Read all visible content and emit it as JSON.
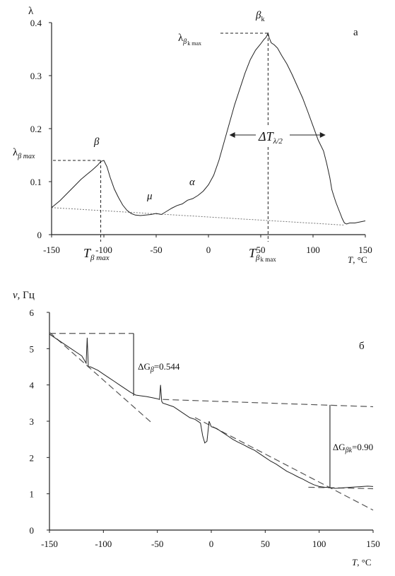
{
  "chart_data": [
    {
      "type": "line",
      "panel_label": "а",
      "ylabel": "λ",
      "xlabel_var": "T",
      "xlabel_unit": ", °C",
      "xlim": [
        -150,
        150
      ],
      "ylim": [
        0,
        0.4
      ],
      "x_ticks": [
        -150,
        -100,
        -50,
        0,
        50,
        100,
        150
      ],
      "y_ticks": [
        0,
        0.1,
        0.2,
        0.3,
        0.4
      ],
      "y_tick_labels": [
        "0",
        "0.1",
        "0.2",
        "0.3",
        "0.4"
      ],
      "series": [
        {
          "x": [
            -150,
            -142,
            -135,
            -128,
            -122,
            -116,
            -111,
            -106,
            -103,
            -100,
            -97,
            -94,
            -90,
            -86,
            -82,
            -78,
            -74,
            -70,
            -65,
            -60,
            -55,
            -50,
            -45,
            -40,
            -35,
            -30,
            -25,
            -20,
            -15,
            -10,
            -5,
            0,
            5,
            10,
            15,
            20,
            25,
            30,
            35,
            40,
            45,
            50,
            53,
            55,
            57,
            58,
            60,
            63,
            66,
            70,
            75,
            80,
            85,
            90,
            95,
            100,
            105,
            110,
            113,
            116,
            118,
            120,
            122,
            124,
            126,
            128,
            130,
            132,
            135,
            140,
            145,
            150
          ],
          "y": [
            0.051,
            0.064,
            0.078,
            0.092,
            0.104,
            0.114,
            0.122,
            0.131,
            0.138,
            0.14,
            0.128,
            0.108,
            0.086,
            0.07,
            0.056,
            0.046,
            0.04,
            0.037,
            0.036,
            0.037,
            0.038,
            0.04,
            0.038,
            0.044,
            0.05,
            0.055,
            0.058,
            0.065,
            0.068,
            0.074,
            0.082,
            0.094,
            0.112,
            0.14,
            0.175,
            0.21,
            0.245,
            0.275,
            0.305,
            0.33,
            0.348,
            0.36,
            0.368,
            0.372,
            0.38,
            0.372,
            0.362,
            0.358,
            0.352,
            0.338,
            0.322,
            0.302,
            0.28,
            0.258,
            0.232,
            0.205,
            0.178,
            0.158,
            0.135,
            0.108,
            0.085,
            0.072,
            0.06,
            0.05,
            0.04,
            0.03,
            0.022,
            0.02,
            0.022,
            0.022,
            0.024,
            0.026
          ]
        }
      ],
      "baseline": {
        "x": [
          -150,
          130
        ],
        "y": [
          0.051,
          0.018
        ]
      },
      "annotations": {
        "beta_peak": "β",
        "beta_k_peak": "β",
        "beta_k_sub": "k",
        "mu": "μ",
        "alpha": "α",
        "lambda_beta_max_main": "λ",
        "lambda_beta_max_sub": "β max",
        "lambda_beta_k_max_main": "λ",
        "lambda_beta_k_max_sub": "β",
        "lambda_beta_k_max_subsub": "k max",
        "T_beta_max_main": "T",
        "T_beta_max_sub": "β max",
        "T_beta_k_max_main": "T",
        "T_beta_k_max_sub": "β",
        "T_beta_k_max_subsub": "k max",
        "delta_T_main": "ΔT",
        "delta_T_sub": "λ/2",
        "beta_max_point": {
          "x": -103,
          "y": 0.14
        },
        "beta_k_max_point": {
          "x": 57,
          "y": 0.38
        },
        "half_width_range": {
          "x": [
            20,
            112
          ],
          "y": 0.188
        }
      }
    },
    {
      "type": "line",
      "panel_label": "б",
      "ylabel_var": "ν",
      "ylabel_unit": ", Гц",
      "xlabel_var": "T",
      "xlabel_unit": ", °C",
      "xlim": [
        -150,
        150
      ],
      "ylim": [
        0,
        6
      ],
      "x_ticks": [
        -150,
        -100,
        -50,
        0,
        50,
        100,
        150
      ],
      "y_ticks": [
        0,
        1,
        2,
        3,
        4,
        5,
        6
      ],
      "series": [
        {
          "x": [
            -150,
            -145,
            -140,
            -135,
            -130,
            -125,
            -120,
            -116,
            -115,
            -114,
            -112,
            -105,
            -100,
            -95,
            -90,
            -85,
            -80,
            -75,
            -70,
            -65,
            -60,
            -55,
            -50,
            -48,
            -47,
            -46,
            -45,
            -40,
            -35,
            -30,
            -25,
            -20,
            -15,
            -10,
            -8,
            -6,
            -4,
            -2,
            0,
            5,
            10,
            15,
            20,
            25,
            30,
            35,
            40,
            45,
            50,
            55,
            60,
            65,
            70,
            75,
            80,
            85,
            90,
            95,
            100,
            105,
            110,
            115,
            120,
            125,
            130,
            135,
            140,
            145,
            150
          ],
          "y": [
            5.4,
            5.3,
            5.2,
            5.1,
            5.0,
            4.9,
            4.8,
            4.6,
            5.3,
            4.5,
            4.5,
            4.4,
            4.3,
            4.2,
            4.1,
            4.0,
            3.9,
            3.8,
            3.72,
            3.7,
            3.68,
            3.65,
            3.62,
            3.6,
            4.0,
            3.55,
            3.5,
            3.45,
            3.4,
            3.3,
            3.2,
            3.1,
            3.05,
            2.95,
            2.6,
            2.4,
            2.45,
            3.0,
            2.85,
            2.8,
            2.7,
            2.6,
            2.5,
            2.42,
            2.35,
            2.27,
            2.2,
            2.1,
            2.0,
            1.9,
            1.82,
            1.72,
            1.62,
            1.55,
            1.47,
            1.4,
            1.32,
            1.25,
            1.2,
            1.18,
            1.17,
            1.15,
            1.16,
            1.17,
            1.18,
            1.19,
            1.2,
            1.21,
            1.2
          ]
        }
      ],
      "trend_lines": [
        {
          "x": [
            -150,
            -55
          ],
          "y": [
            5.45,
            2.95
          ]
        },
        {
          "x": [
            -45,
            150
          ],
          "y": [
            3.6,
            3.4
          ]
        },
        {
          "x": [
            -15,
            150
          ],
          "y": [
            3.1,
            0.55
          ]
        },
        {
          "x": [
            90,
            150
          ],
          "y": [
            1.18,
            1.14
          ]
        },
        {
          "x": [
            -150,
            -72
          ],
          "y": [
            5.42,
            5.42
          ]
        }
      ],
      "annotations": {
        "delta_G_beta_main": "ΔG",
        "delta_G_beta_sub": "β",
        "delta_G_beta_value": "=0.544",
        "delta_G_beta_x": -72,
        "delta_G_beta_range": [
          3.7,
          5.42
        ],
        "delta_G_beta_k_main": "ΔG",
        "delta_G_beta_k_sub": "βk",
        "delta_G_beta_k_value": "=0.90",
        "delta_G_beta_k_x": 110,
        "delta_G_beta_k_range": [
          1.18,
          3.45
        ]
      }
    }
  ]
}
